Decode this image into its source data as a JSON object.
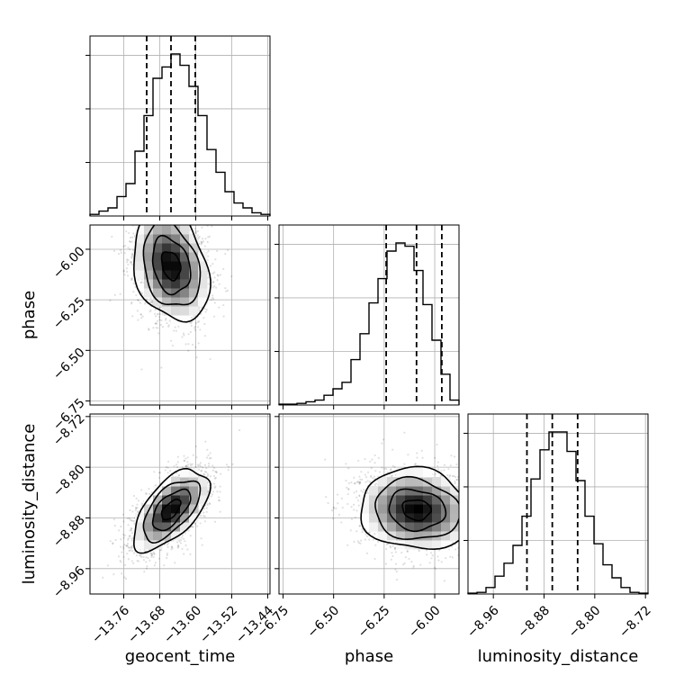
{
  "chart_data": {
    "type": "corner",
    "grid": true,
    "parameters": [
      "geocent_time",
      "phase",
      "luminosity_distance"
    ],
    "axis_labels": {
      "geocent_time": "geocent_time",
      "phase": "phase",
      "luminosity_distance": "luminosity_distance"
    },
    "ranges": {
      "geocent_time": [
        -13.835,
        -13.435
      ],
      "phase": [
        -6.77,
        -5.88
      ],
      "luminosity_distance": [
        -9.0,
        -8.716
      ]
    },
    "ticks": {
      "geocent_time": [
        {
          "value": -13.76,
          "label": "−13.76"
        },
        {
          "value": -13.68,
          "label": "−13.68"
        },
        {
          "value": -13.6,
          "label": "−13.60"
        },
        {
          "value": -13.52,
          "label": "−13.52"
        },
        {
          "value": -13.44,
          "label": "−13.44"
        }
      ],
      "phase": [
        {
          "value": -6.75,
          "label": "−6.75"
        },
        {
          "value": -6.5,
          "label": "−6.50"
        },
        {
          "value": -6.25,
          "label": "−6.25"
        },
        {
          "value": -6.0,
          "label": "−6.00"
        }
      ],
      "luminosity_distance": [
        {
          "value": -8.96,
          "label": "−8.96"
        },
        {
          "value": -8.88,
          "label": "−8.88"
        },
        {
          "value": -8.8,
          "label": "−8.80"
        },
        {
          "value": -8.72,
          "label": "−8.72"
        }
      ]
    },
    "histograms": {
      "geocent_time": {
        "edges_range": [
          -13.835,
          -13.435
        ],
        "counts": [
          1,
          3,
          5,
          12,
          20,
          40,
          62,
          85,
          92,
          100,
          93,
          80,
          62,
          41,
          27,
          15,
          8,
          5,
          2,
          1
        ],
        "quantiles": [
          -13.709,
          -13.655,
          -13.601
        ]
      },
      "phase": {
        "edges_range": [
          -6.77,
          -5.88
        ],
        "counts": [
          0.5,
          0.5,
          1,
          2,
          3,
          6,
          10,
          14,
          28,
          44,
          63,
          78,
          95,
          100,
          98,
          83,
          62,
          40,
          19,
          3
        ],
        "quantiles": [
          -6.24,
          -6.09,
          -5.965
        ]
      },
      "luminosity_distance": {
        "edges_range": [
          -9.0,
          -8.716
        ],
        "counts": [
          0.5,
          1,
          4,
          11,
          19,
          30,
          48,
          71,
          89,
          100,
          100,
          88,
          70,
          48,
          31,
          18,
          10,
          4,
          1,
          0.5
        ],
        "quantiles": [
          -8.907,
          -8.867,
          -8.827
        ]
      }
    },
    "joint": [
      {
        "x": "geocent_time",
        "y": "phase",
        "mean": [
          -13.655,
          -6.08
        ],
        "std": [
          0.042,
          0.14
        ],
        "rho": -0.25
      },
      {
        "x": "geocent_time",
        "y": "luminosity_distance",
        "mean": [
          -13.655,
          -8.867
        ],
        "std": [
          0.042,
          0.032
        ],
        "rho": 0.6
      },
      {
        "x": "phase",
        "y": "luminosity_distance",
        "mean": [
          -6.09,
          -8.867
        ],
        "std": [
          0.14,
          0.032
        ],
        "rho": -0.1
      }
    ],
    "contour_levels_sigma": [
      0.5,
      1.0,
      1.5,
      2.0
    ]
  }
}
